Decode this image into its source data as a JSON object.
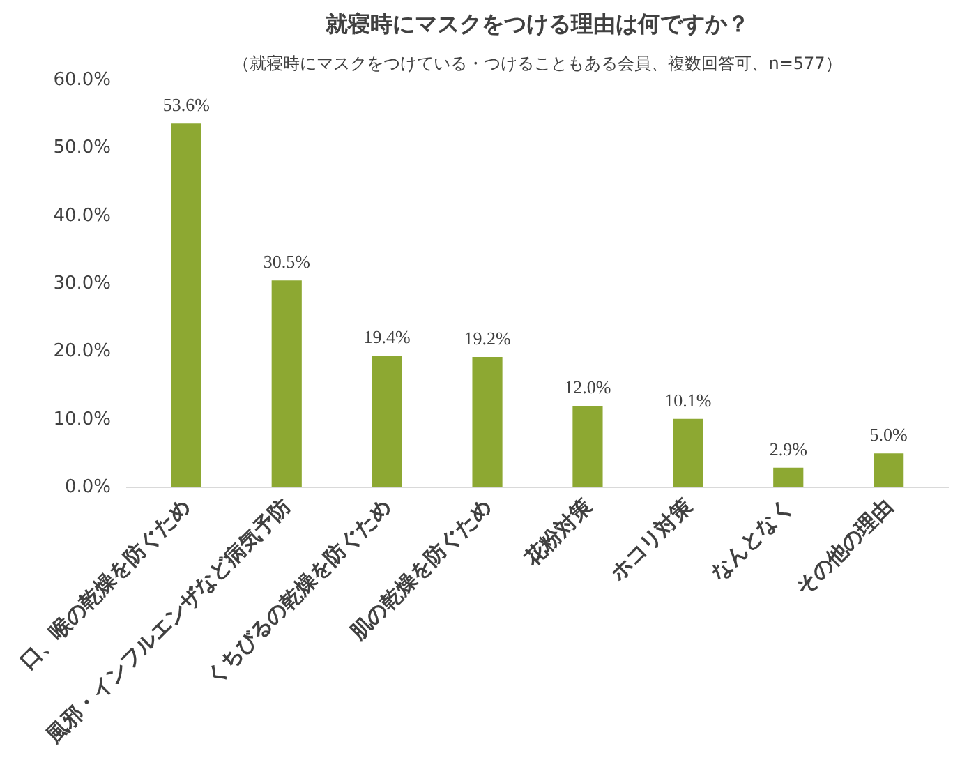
{
  "chart_data": {
    "type": "bar",
    "title": "就寝時にマスクをつける理由は何ですか？",
    "subtitle": "（就寝時にマスクをつけている・つけることもある会員、複数回答可、n=577）",
    "categories": [
      "口、喉の乾燥を防ぐため",
      "風邪・インフルエンザなど病気予防",
      "くちびるの乾燥を防ぐため",
      "肌の乾燥を防ぐため",
      "花粉対策",
      "ホコリ対策",
      "なんとなく",
      "その他の理由"
    ],
    "values": [
      53.6,
      30.5,
      19.4,
      19.2,
      12.0,
      10.1,
      2.9,
      5.0
    ],
    "value_labels": [
      "53.6%",
      "30.5%",
      "19.4%",
      "19.2%",
      "12.0%",
      "10.1%",
      "2.9%",
      "5.0%"
    ],
    "color": "#8da832",
    "ylim": [
      0,
      60
    ],
    "yticks": [
      {
        "value": 0,
        "label": "0.0%"
      },
      {
        "value": 10,
        "label": "10.0%"
      },
      {
        "value": 20,
        "label": "20.0%"
      },
      {
        "value": 30,
        "label": "30.0%"
      },
      {
        "value": 40,
        "label": "40.0%"
      },
      {
        "value": 50,
        "label": "50.0%"
      },
      {
        "value": 60,
        "label": "60.0%"
      }
    ],
    "grid": false
  }
}
